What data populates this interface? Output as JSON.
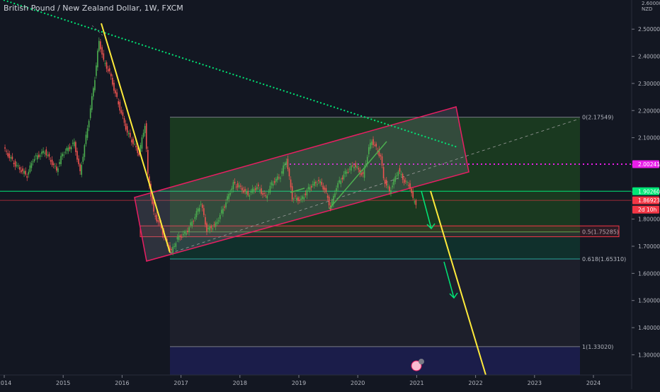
{
  "chart_data": {
    "type": "candlestick",
    "title": "British Pound / New Zealand Dollar, 1W, FXCM",
    "currency": "NZD",
    "y_ticks": [
      1.3,
      1.4,
      1.5,
      1.6,
      1.7,
      1.8,
      1.9,
      2.0,
      2.1,
      2.2,
      2.3,
      2.4,
      2.5
    ],
    "y_tick_labels": [
      "1.30000",
      "1.40000",
      "1.50000",
      "1.60000",
      "1.70000",
      "1.80000",
      "1.90000",
      "2.00000",
      "2.10000",
      "2.20000",
      "2.30000",
      "2.40000",
      "2.50000"
    ],
    "y_top_label": "2.60000",
    "x_ticks": [
      "2014",
      "2015",
      "2016",
      "2017",
      "2018",
      "2019",
      "2020",
      "2021",
      "2022",
      "2023",
      "2024"
    ],
    "price_labels": [
      {
        "text": "2.00241",
        "value": 2.00241,
        "color": "#e91ee9"
      },
      {
        "text": "1.90260",
        "value": 1.9026,
        "color": "#00e676"
      },
      {
        "text": "1.86923",
        "value": 1.86923,
        "color": "#f23645"
      },
      {
        "text": "2d 10h",
        "value": 1.835,
        "color": "#f23645"
      }
    ],
    "fib_levels": [
      {
        "ratio": "0",
        "text": "0(2.17549)",
        "value": 2.17549
      },
      {
        "ratio": "0.5",
        "text": "0.5(1.75285)",
        "value": 1.75285
      },
      {
        "ratio": "0.618",
        "text": "0.618(1.65310)",
        "value": 1.6531
      },
      {
        "ratio": "1",
        "text": "1(1.33020)",
        "value": 1.3302
      }
    ],
    "series_path": [
      [
        2014.0,
        2.06
      ],
      [
        2014.2,
        2.0
      ],
      [
        2014.4,
        1.96
      ],
      [
        2014.5,
        2.02
      ],
      [
        2014.7,
        2.05
      ],
      [
        2014.9,
        1.98
      ],
      [
        2015.0,
        2.04
      ],
      [
        2015.2,
        2.08
      ],
      [
        2015.3,
        1.97
      ],
      [
        2015.45,
        2.17
      ],
      [
        2015.55,
        2.32
      ],
      [
        2015.62,
        2.46
      ],
      [
        2015.7,
        2.38
      ],
      [
        2015.8,
        2.34
      ],
      [
        2015.9,
        2.26
      ],
      [
        2016.0,
        2.19
      ],
      [
        2016.1,
        2.12
      ],
      [
        2016.2,
        2.08
      ],
      [
        2016.3,
        2.04
      ],
      [
        2016.4,
        2.15
      ],
      [
        2016.45,
        1.96
      ],
      [
        2016.55,
        1.82
      ],
      [
        2016.65,
        1.78
      ],
      [
        2016.75,
        1.72
      ],
      [
        2016.85,
        1.68
      ],
      [
        2016.95,
        1.73
      ],
      [
        2017.1,
        1.75
      ],
      [
        2017.25,
        1.81
      ],
      [
        2017.35,
        1.86
      ],
      [
        2017.45,
        1.76
      ],
      [
        2017.6,
        1.78
      ],
      [
        2017.75,
        1.85
      ],
      [
        2017.9,
        1.93
      ],
      [
        2018.0,
        1.92
      ],
      [
        2018.15,
        1.89
      ],
      [
        2018.3,
        1.92
      ],
      [
        2018.45,
        1.88
      ],
      [
        2018.55,
        1.93
      ],
      [
        2018.7,
        1.96
      ],
      [
        2018.8,
        2.02
      ],
      [
        2018.9,
        1.88
      ],
      [
        2019.05,
        1.87
      ],
      [
        2019.2,
        1.92
      ],
      [
        2019.35,
        1.94
      ],
      [
        2019.45,
        1.91
      ],
      [
        2019.55,
        1.84
      ],
      [
        2019.65,
        1.92
      ],
      [
        2019.8,
        1.97
      ],
      [
        2019.95,
        2.0
      ],
      [
        2020.1,
        1.96
      ],
      [
        2020.2,
        2.06
      ],
      [
        2020.25,
        2.09
      ],
      [
        2020.4,
        2.03
      ],
      [
        2020.45,
        1.95
      ],
      [
        2020.55,
        1.9
      ],
      [
        2020.7,
        1.98
      ],
      [
        2020.8,
        1.94
      ],
      [
        2020.9,
        1.92
      ],
      [
        2020.95,
        1.87
      ],
      [
        2021.0,
        1.86
      ]
    ]
  }
}
